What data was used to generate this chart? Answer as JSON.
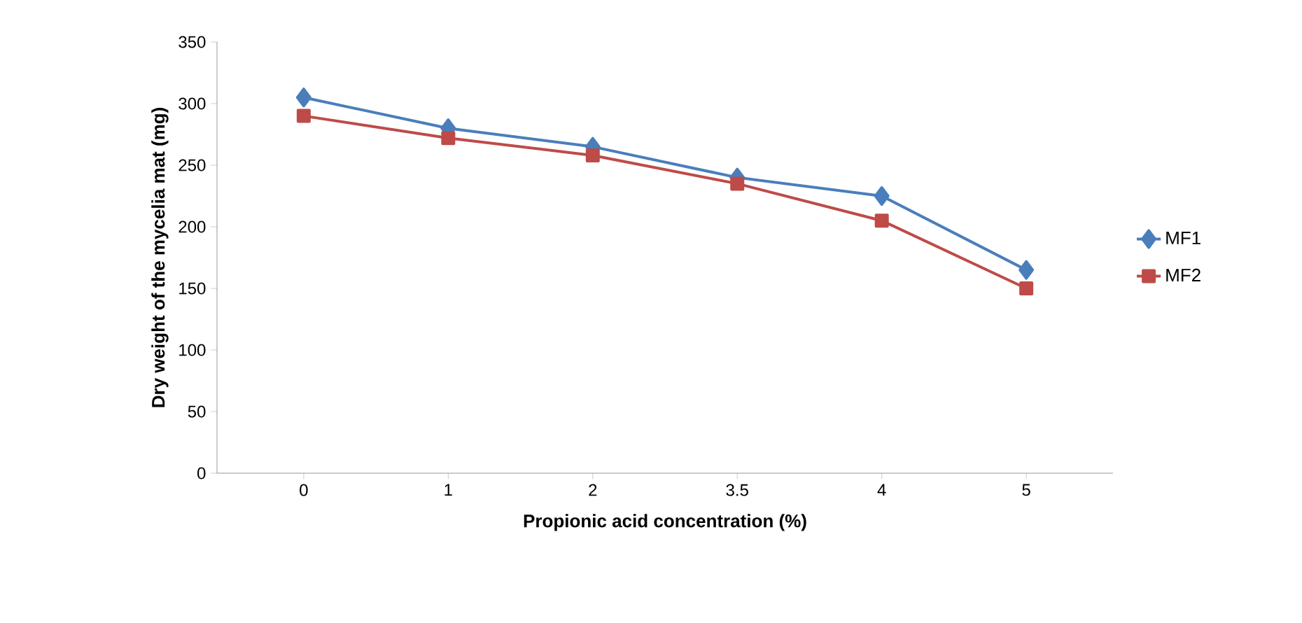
{
  "chart_data": {
    "type": "line",
    "xlabel": "Propionic acid concentration (%)",
    "ylabel": "Dry weight of the mycelia mat (mg)",
    "categories": [
      "0",
      "1",
      "2",
      "3.5",
      "4",
      "5"
    ],
    "series": [
      {
        "name": "MF1",
        "color": "#4a7ebb",
        "marker": "diamond",
        "values": [
          305,
          280,
          265,
          240,
          225,
          165
        ]
      },
      {
        "name": "MF2",
        "color": "#be4b48",
        "marker": "square",
        "values": [
          290,
          272,
          258,
          235,
          205,
          150
        ]
      }
    ],
    "ylim": [
      0,
      350
    ],
    "yticks": [
      0,
      50,
      100,
      150,
      200,
      250,
      300,
      350
    ],
    "grid": false,
    "legend": "right",
    "line_style": "solid"
  }
}
